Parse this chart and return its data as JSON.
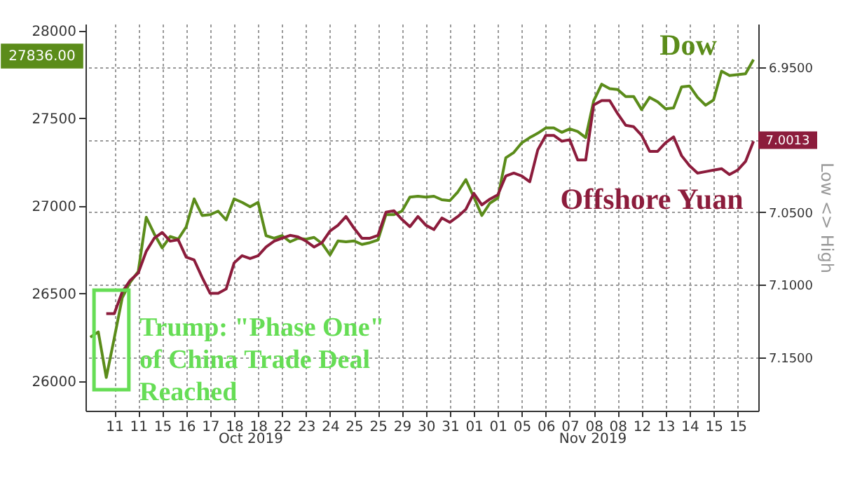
{
  "chart_data": {
    "type": "line",
    "categories": [
      null,
      null,
      null,
      "11",
      null,
      null,
      "11",
      null,
      null,
      "15",
      null,
      null,
      "16",
      null,
      null,
      "17",
      null,
      null,
      "18",
      null,
      null,
      "18",
      null,
      null,
      "22",
      null,
      null,
      "23",
      null,
      null,
      "24",
      null,
      null,
      "25",
      null,
      null,
      "25",
      null,
      null,
      "29",
      null,
      null,
      "30",
      null,
      null,
      "31",
      null,
      null,
      "01",
      null,
      null,
      "01",
      null,
      null,
      "05",
      null,
      null,
      "06",
      null,
      null,
      "07",
      null,
      null,
      "08",
      null,
      null,
      "08",
      null,
      null,
      "12",
      null,
      null,
      "13",
      null,
      null,
      "14",
      null,
      null,
      "15",
      null,
      null,
      "15",
      null,
      null
    ],
    "ylim": [
      25830,
      28040
    ],
    "yticks": [
      26000,
      26500,
      27000,
      27500,
      28000
    ],
    "y2lim": [
      7.187,
      6.92
    ],
    "y2ticks": [
      {
        "value": 6.95,
        "label": "6.9500"
      },
      {
        "value": 7.0,
        "label": null
      },
      {
        "value": 7.05,
        "label": "7.0500"
      },
      {
        "value": 7.1,
        "label": "7.1000"
      },
      {
        "value": 7.15,
        "label": "7.1500"
      }
    ],
    "y2label": "Low <> High",
    "grid": true,
    "series": [
      {
        "name": "Dow",
        "color": "#5b8c1a",
        "values": [
          26250,
          26280,
          26020,
          26245,
          26475,
          26565,
          26625,
          26935,
          26840,
          26760,
          26825,
          26810,
          26880,
          27040,
          26945,
          26950,
          26970,
          26920,
          27040,
          27020,
          26995,
          27020,
          26830,
          26815,
          26830,
          26795,
          26815,
          26810,
          26820,
          26785,
          26720,
          26800,
          26795,
          26800,
          26780,
          26790,
          26805,
          26950,
          26950,
          26970,
          27050,
          27055,
          27050,
          27055,
          27035,
          27030,
          27080,
          27150,
          27050,
          26945,
          27015,
          27045,
          27275,
          27305,
          27360,
          27390,
          27415,
          27445,
          27445,
          27420,
          27440,
          27425,
          27390,
          27600,
          27695,
          27670,
          27665,
          27625,
          27625,
          27550,
          27620,
          27595,
          27555,
          27560,
          27680,
          27685,
          27620,
          27575,
          27605,
          27770,
          27745,
          27750,
          27755,
          27836
        ]
      },
      {
        "name": "Offshore Yuan",
        "color": "#8c1c3c",
        "axis": "y2",
        "values": [
          null,
          null,
          7.12,
          7.12,
          7.105,
          7.097,
          7.092,
          7.077,
          7.068,
          7.064,
          7.07,
          7.069,
          7.081,
          7.083,
          7.095,
          7.106,
          7.106,
          7.103,
          7.085,
          7.08,
          7.082,
          7.08,
          7.074,
          7.07,
          7.068,
          7.066,
          7.067,
          7.07,
          7.074,
          7.071,
          7.063,
          7.059,
          7.053,
          7.061,
          7.068,
          7.068,
          7.066,
          7.05,
          7.049,
          7.055,
          7.06,
          7.053,
          7.059,
          7.062,
          7.054,
          7.057,
          7.053,
          7.048,
          7.037,
          7.045,
          7.041,
          7.038,
          7.025,
          7.023,
          7.025,
          7.029,
          7.007,
          6.997,
          6.997,
          7.001,
          7.0,
          7.014,
          7.014,
          6.976,
          6.973,
          6.973,
          6.982,
          6.99,
          6.991,
          6.997,
          7.008,
          7.008,
          7.002,
          6.998,
          7.011,
          7.018,
          7.023,
          7.022,
          7.021,
          7.02,
          7.024,
          7.021,
          7.015,
          7.001
        ]
      }
    ],
    "annotations": [
      "Trump: \"Phase One\" of China Trade Deal Reached",
      "27836.00",
      "7.0013",
      "Oct 2019",
      "Nov 2019"
    ]
  }
}
